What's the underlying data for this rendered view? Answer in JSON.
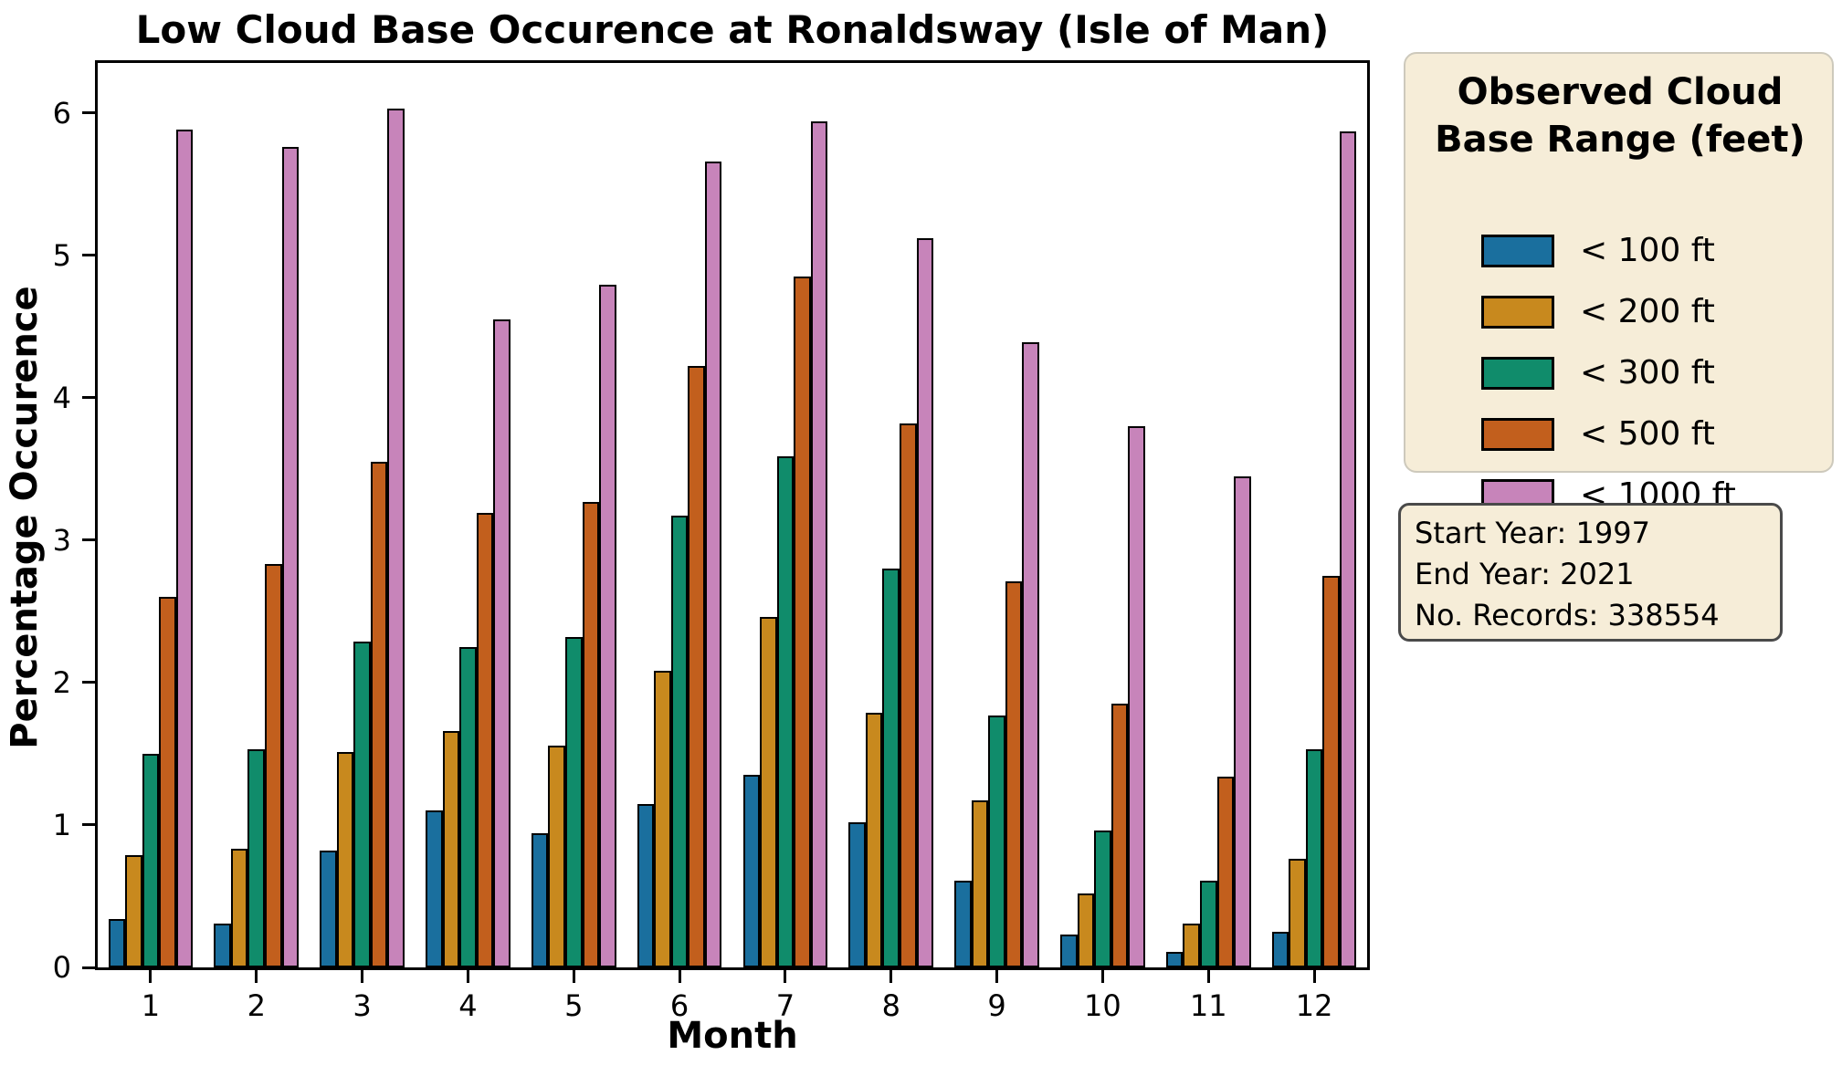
{
  "title": "Low Cloud Base Occurence at Ronaldsway (Isle of Man)",
  "chart_data": {
    "type": "bar",
    "title": "Low Cloud Base Occurence at Ronaldsway (Isle of Man)",
    "xlabel": "Month",
    "ylabel": "Percentage Occurence",
    "categories": [
      "1",
      "2",
      "3",
      "4",
      "5",
      "6",
      "7",
      "8",
      "9",
      "10",
      "11",
      "12"
    ],
    "series": [
      {
        "name": "< 100 ft",
        "color": "#1a6f9e",
        "values": [
          0.34,
          0.31,
          0.82,
          1.1,
          0.94,
          1.15,
          1.35,
          1.02,
          0.61,
          0.23,
          0.11,
          0.25
        ]
      },
      {
        "name": "< 200 ft",
        "color": "#c8891e",
        "values": [
          0.79,
          0.83,
          1.51,
          1.66,
          1.56,
          2.08,
          2.46,
          1.79,
          1.17,
          0.52,
          0.31,
          0.76
        ]
      },
      {
        "name": "< 300 ft",
        "color": "#108c6b",
        "values": [
          1.5,
          1.53,
          2.29,
          2.25,
          2.32,
          3.17,
          3.59,
          2.8,
          1.77,
          0.96,
          0.61,
          1.53
        ]
      },
      {
        "name": "< 500 ft",
        "color": "#c25f1d",
        "values": [
          2.6,
          2.83,
          3.55,
          3.19,
          3.27,
          4.22,
          4.85,
          3.82,
          2.71,
          1.85,
          1.34,
          2.75
        ]
      },
      {
        "name": "< 1000 ft",
        "color": "#c784ba",
        "values": [
          5.88,
          5.76,
          6.03,
          4.55,
          4.79,
          5.66,
          5.94,
          5.12,
          4.39,
          3.8,
          3.45,
          5.87
        ]
      }
    ],
    "ylim": [
      0,
      6.35
    ],
    "yticks": [
      "0",
      "1",
      "2",
      "3",
      "4",
      "5",
      "6"
    ],
    "grid": false,
    "legend_position": "right-outside",
    "bar_edge_color": "#000000"
  },
  "legend": {
    "title": "Observed Cloud Base Range (feet)"
  },
  "info_box": {
    "lines": [
      "Start Year: 1997",
      "End Year: 2021",
      "No. Records: 338554"
    ]
  },
  "colors": {
    "panel_background": "#f6edd8",
    "legend_border": "#cdc9bc",
    "info_border": "#4a4a4a",
    "axes": "#000000"
  }
}
